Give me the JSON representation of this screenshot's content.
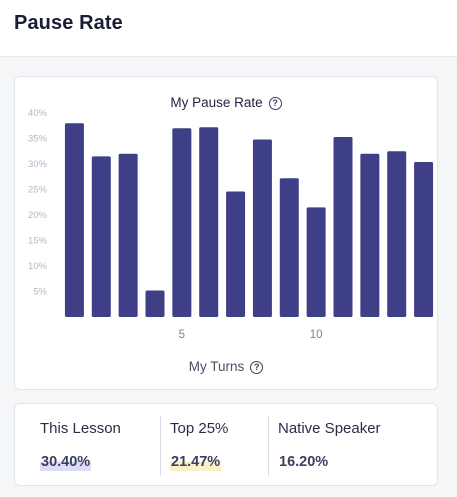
{
  "page": {
    "title": "Pause Rate"
  },
  "chart": {
    "title": "My Pause Rate",
    "x_axis_label": "My Turns"
  },
  "chart_data": {
    "type": "bar",
    "title": "My Pause Rate",
    "xlabel": "My Turns",
    "ylabel": "",
    "x": [
      1,
      2,
      3,
      4,
      5,
      6,
      7,
      8,
      9,
      10,
      11,
      12,
      13,
      14
    ],
    "values": [
      38,
      31.5,
      32,
      5.2,
      37,
      37.2,
      24.6,
      34.8,
      27.2,
      21.5,
      35.3,
      32,
      32.5,
      30.4
    ],
    "ylim": [
      0,
      40
    ],
    "y_ticks": [
      "5%",
      "10%",
      "15%",
      "20%",
      "25%",
      "30%",
      "35%",
      "40%"
    ],
    "x_ticks": [
      "5",
      "10"
    ],
    "grid": false,
    "bar_color": "#3e3f86"
  },
  "stats": [
    {
      "label": "This Lesson",
      "value": "30.40%",
      "highlight": "#dcdcf6"
    },
    {
      "label": "Top 25%",
      "value": "21.47%",
      "highlight": "#fbefc9"
    },
    {
      "label": "Native Speaker",
      "value": "16.20%",
      "highlight": ""
    }
  ],
  "icons": {
    "help": "help-circle-icon",
    "help_glyph": "?"
  }
}
